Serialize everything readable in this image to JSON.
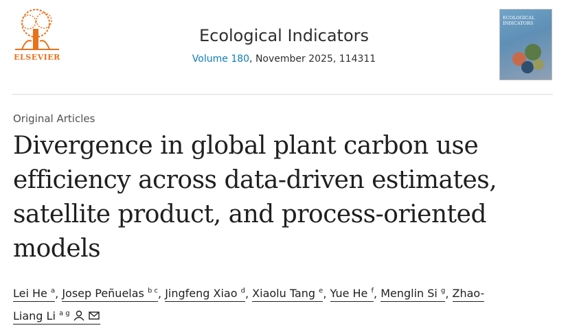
{
  "header": {
    "publisher": "ELSEVIER",
    "journal": "Ecological Indicators",
    "volume": "Volume 180",
    "issue_info": ", November 2025, 114311",
    "cover_title": "ECOLOGICAL INDICATORS"
  },
  "article": {
    "type": "Original Articles",
    "title": "Divergence in global plant carbon use efficiency across data-driven estimates, satellite product, and process-oriented models",
    "separator": ",",
    "authors": [
      {
        "name": "Lei He",
        "affiliations": "a"
      },
      {
        "name": "Josep Peñuelas",
        "affiliations": "b c"
      },
      {
        "name": "Jingfeng Xiao",
        "affiliations": "d"
      },
      {
        "name": "Xiaolu Tang",
        "affiliations": "e"
      },
      {
        "name": "Yue He",
        "affiliations": "f"
      },
      {
        "name": "Menglin Si",
        "affiliations": "g"
      },
      {
        "name": "Zhao-Liang Li",
        "affiliations": "a g"
      }
    ]
  }
}
